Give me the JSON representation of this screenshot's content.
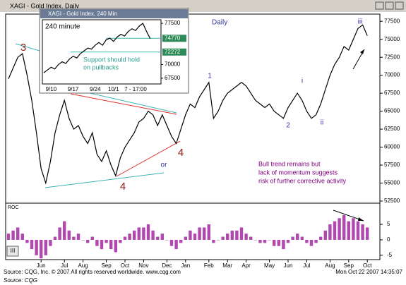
{
  "window": {
    "title": "XAGI - Gold Index, Daily",
    "scroll_label": "III"
  },
  "footer": {
    "source": "Source: CQG, Inc. © 2007 All rights reserved worldwide. www.cqg.com",
    "timestamp": "Mon Oct 22 2007 14:35:07",
    "credit": "Source: CQG"
  },
  "chart_data": [
    {
      "type": "line",
      "title": "Daily",
      "color": "#000000",
      "categories": [
        null,
        null,
        null,
        null,
        null,
        null,
        null,
        "Jun",
        null,
        null,
        null,
        null,
        "Jul",
        null,
        null,
        null,
        "Aug",
        null,
        null,
        null,
        null,
        "Sep",
        null,
        null,
        null,
        "Oct",
        null,
        null,
        null,
        "Nov",
        null,
        null,
        null,
        null,
        "Dec",
        null,
        null,
        null,
        "Jan",
        null,
        null,
        null,
        null,
        "Feb",
        null,
        null,
        null,
        "Mar",
        null,
        null,
        null,
        "Apr",
        null,
        null,
        null,
        null,
        "May",
        null,
        null,
        null,
        "Jun",
        null,
        null,
        null,
        "Jul",
        null,
        null,
        null,
        null,
        "Aug",
        null,
        null,
        null,
        "Sep",
        null,
        null,
        null,
        "Oct"
      ],
      "values": [
        69500,
        71000,
        72500,
        73000,
        70000,
        66500,
        62000,
        57000,
        55000,
        58000,
        62000,
        64500,
        66500,
        64000,
        62500,
        63000,
        61500,
        60500,
        62000,
        59000,
        58000,
        59500,
        57500,
        56000,
        58500,
        60000,
        61000,
        62000,
        63500,
        64000,
        65000,
        64500,
        63000,
        64500,
        63000,
        61500,
        60500,
        62500,
        64500,
        66000,
        65500,
        67000,
        68000,
        69000,
        64000,
        65000,
        66500,
        67500,
        68000,
        68500,
        69000,
        68500,
        67500,
        66500,
        66000,
        65500,
        66000,
        65000,
        64500,
        64000,
        65500,
        66500,
        67500,
        66500,
        65000,
        64000,
        64500,
        66000,
        68000,
        70000,
        71500,
        72500,
        74000,
        73500,
        75000,
        76500,
        77000,
        75500
      ],
      "ylim": [
        52500,
        78500
      ],
      "yticks": [
        77500,
        75000,
        72500,
        70000,
        67500,
        65000,
        62500,
        60000,
        57500,
        55000,
        52500
      ],
      "wave_labels": [
        "3",
        "4",
        "4",
        "or",
        "1",
        "2",
        "i",
        "ii",
        "iii"
      ],
      "note": [
        "Bull trend remains but",
        "lack of momentum suggests",
        "risk of further corrective activity"
      ]
    },
    {
      "type": "bar",
      "title": "ROC",
      "color": "#b048b0",
      "values": [
        2,
        3,
        4,
        2,
        -1,
        -3,
        -5,
        -6,
        -5,
        -2,
        1,
        4,
        6,
        3,
        1,
        2,
        0,
        -1,
        1,
        -2,
        -3,
        -1,
        -3,
        -4,
        -1,
        1,
        2,
        3,
        4,
        4,
        5,
        3,
        1,
        2,
        0,
        -2,
        -3,
        -1,
        1,
        3,
        2,
        4,
        4,
        5,
        -1,
        0,
        1,
        2,
        3,
        3,
        4,
        2,
        1,
        0,
        -1,
        -1,
        0,
        -2,
        -2,
        -3,
        -1,
        1,
        2,
        1,
        -1,
        -2,
        -1,
        1,
        3,
        5,
        6,
        7,
        8,
        6,
        7,
        6,
        5,
        4
      ],
      "ylim": [
        -6.4,
        11.4
      ],
      "yticks": [
        5,
        0,
        -5
      ]
    },
    {
      "type": "line",
      "title": "XAGI - Gold Index, 240 Min",
      "subtitle": "240 minute",
      "color": "#000000",
      "categories": [
        null,
        null,
        "9/10",
        null,
        null,
        null,
        null,
        null,
        "9/17",
        null,
        null,
        null,
        null,
        null,
        "9/24",
        null,
        null,
        null,
        null,
        "10/1",
        null,
        null,
        null,
        null,
        null,
        "7 - 17:00",
        null,
        null,
        null,
        null
      ],
      "values": [
        68500,
        69000,
        69500,
        69200,
        70000,
        70500,
        70200,
        71000,
        71500,
        71200,
        72000,
        72500,
        73000,
        72800,
        73500,
        74000,
        73500,
        74500,
        74800,
        74200,
        75000,
        75500,
        75200,
        76000,
        76500,
        76200,
        77000,
        77500,
        76000,
        74700
      ],
      "ylim": [
        66460,
        78150
      ],
      "yticks": [
        77500,
        70000,
        67500
      ],
      "levels": [
        74770,
        72272
      ],
      "note": [
        "Support should hold",
        "on pullbacks"
      ]
    }
  ]
}
